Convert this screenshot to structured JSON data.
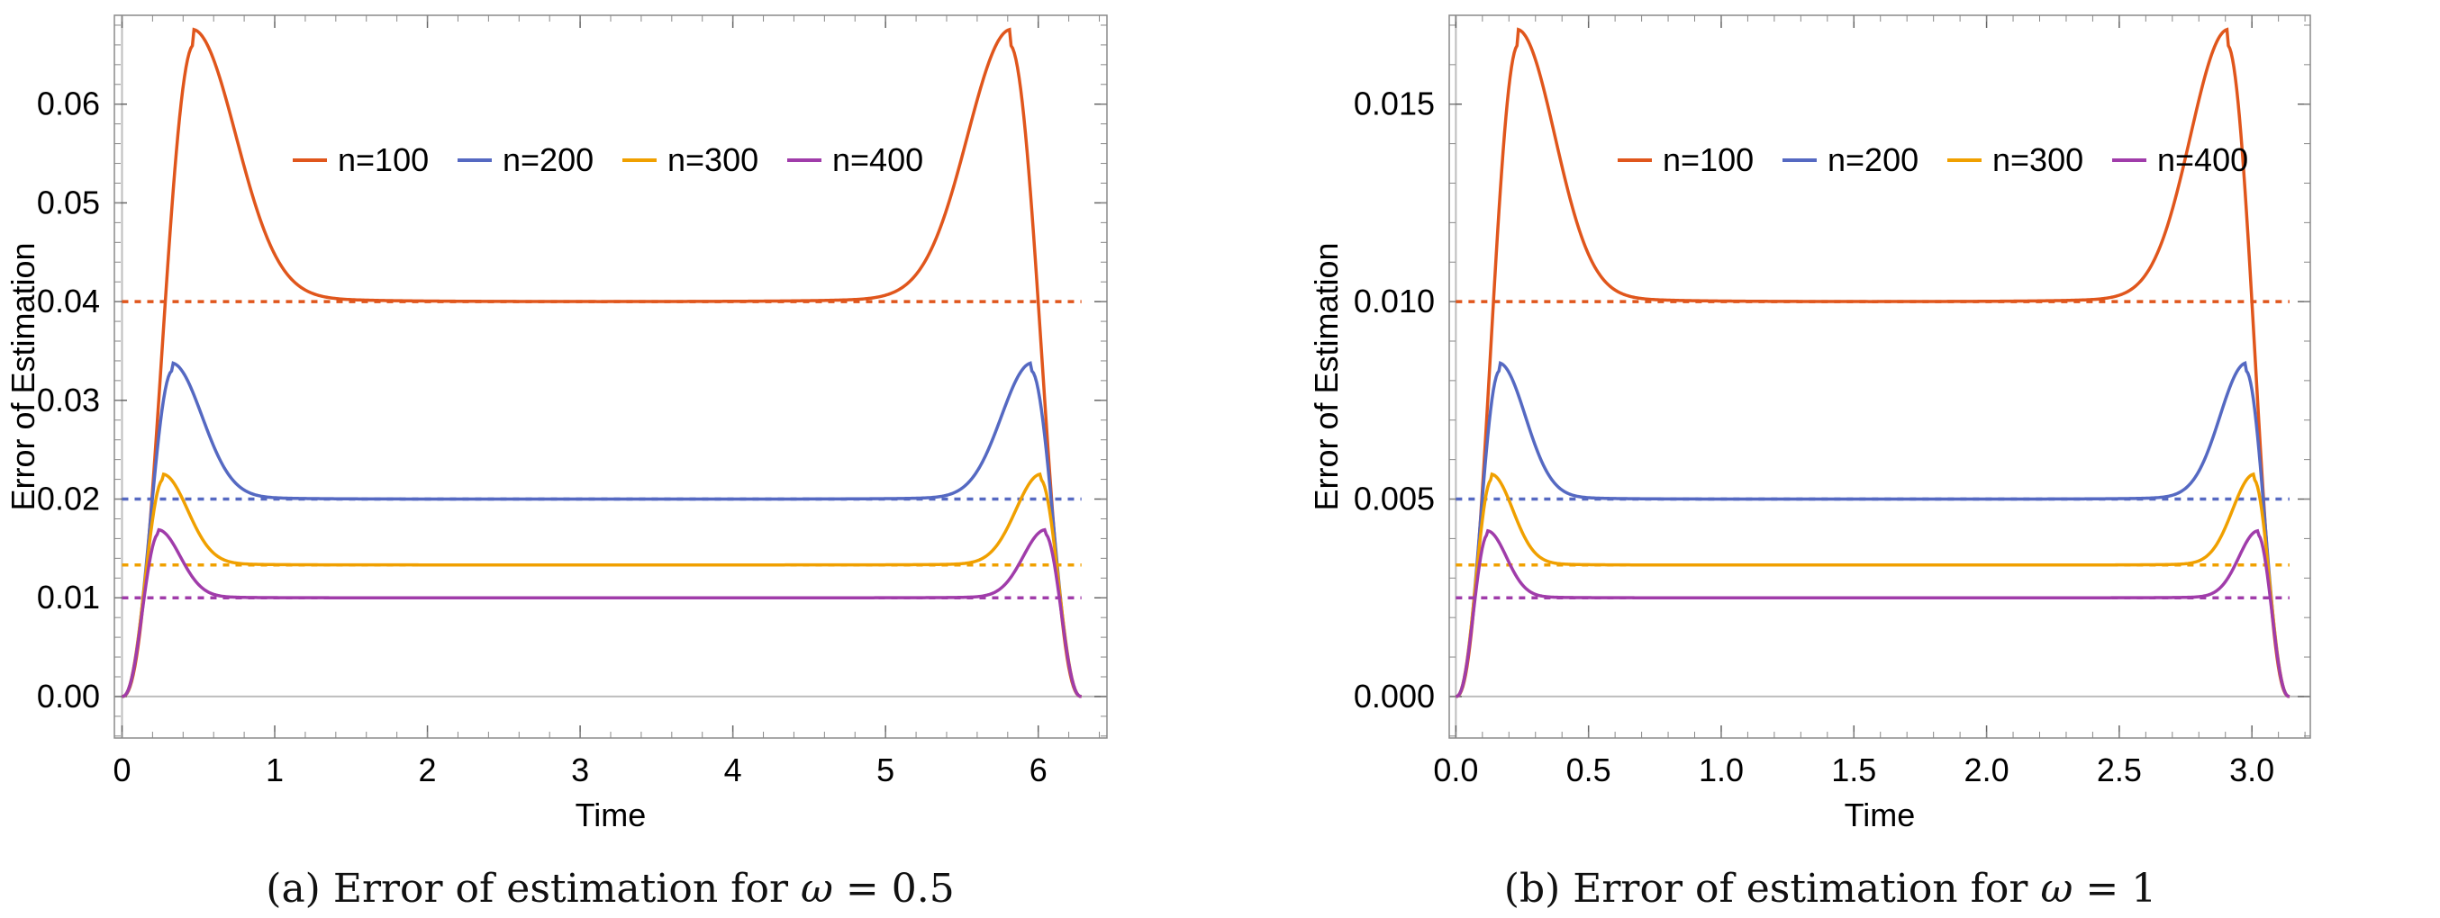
{
  "chart_data": [
    {
      "type": "line",
      "xlabel": "Time",
      "ylabel": "Error of Estimation",
      "xlim": [
        -0.05,
        6.45
      ],
      "ylim": [
        -0.0042,
        0.069
      ],
      "x_ticks": [
        0,
        1,
        2,
        3,
        4,
        5,
        6
      ],
      "x_tick_labels": [
        "0",
        "1",
        "2",
        "3",
        "4",
        "5",
        "6"
      ],
      "y_ticks": [
        0,
        0.01,
        0.02,
        0.03,
        0.04,
        0.05,
        0.06
      ],
      "y_tick_labels": [
        "0.00",
        "0.01",
        "0.02",
        "0.03",
        "0.04",
        "0.05",
        "0.06"
      ],
      "x_end": 6.283,
      "series": [
        {
          "name": "n=100",
          "color": "#E0561C",
          "asymptote": 0.04,
          "peak": 0.066,
          "peak_time": 0.47
        },
        {
          "name": "n=200",
          "color": "#5569C2",
          "asymptote": 0.02,
          "peak": 0.033,
          "peak_time": 0.33
        },
        {
          "name": "n=300",
          "color": "#F0A000",
          "asymptote": 0.01333,
          "peak": 0.022,
          "peak_time": 0.27
        },
        {
          "name": "n=400",
          "color": "#A03CAA",
          "asymptote": 0.01,
          "peak": 0.0165,
          "peak_time": 0.24
        }
      ],
      "legend": "top-center",
      "caption_prefix": "(a) Error of estimation for",
      "caption_symbol": "ω",
      "caption_suffix": "= 0.5"
    },
    {
      "type": "line",
      "xlabel": "Time",
      "ylabel": "Error of Estimation",
      "xlim": [
        -0.025,
        3.22
      ],
      "ylim": [
        -0.00105,
        0.01725
      ],
      "x_ticks": [
        0,
        0.5,
        1,
        1.5,
        2,
        2.5,
        3
      ],
      "x_tick_labels": [
        "0.0",
        "0.5",
        "1.0",
        "1.5",
        "2.0",
        "2.5",
        "3.0"
      ],
      "y_ticks": [
        0,
        0.005,
        0.01,
        0.015
      ],
      "y_tick_labels": [
        "0.000",
        "0.005",
        "0.010",
        "0.015"
      ],
      "x_end": 3.1416,
      "series": [
        {
          "name": "n=100",
          "color": "#E0561C",
          "asymptote": 0.01,
          "peak": 0.0165,
          "peak_time": 0.235
        },
        {
          "name": "n=200",
          "color": "#5569C2",
          "asymptote": 0.005,
          "peak": 0.00825,
          "peak_time": 0.165
        },
        {
          "name": "n=300",
          "color": "#F0A000",
          "asymptote": 0.00333,
          "peak": 0.0055,
          "peak_time": 0.135
        },
        {
          "name": "n=400",
          "color": "#A03CAA",
          "asymptote": 0.0025,
          "peak": 0.0041,
          "peak_time": 0.12
        }
      ],
      "legend": "top-center",
      "caption_prefix": "(b) Error of estimation for",
      "caption_symbol": "ω",
      "caption_suffix": "= 1"
    }
  ]
}
